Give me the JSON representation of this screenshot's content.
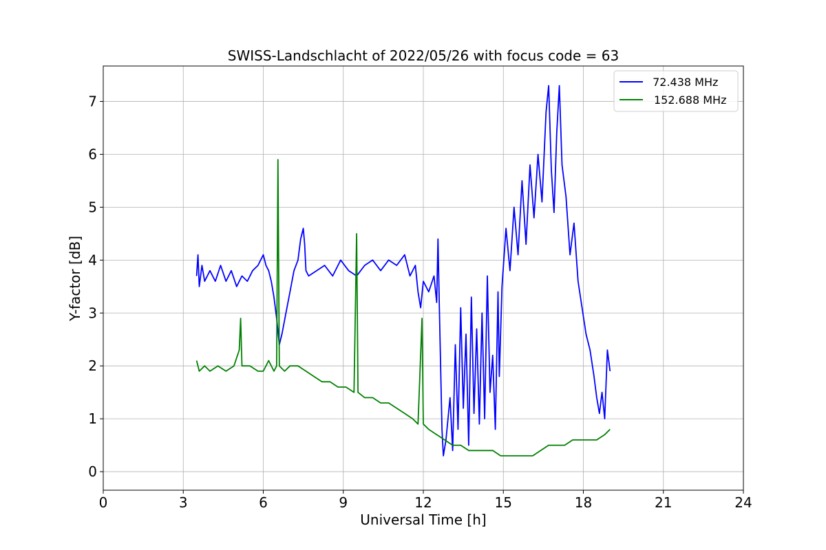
{
  "chart_data": {
    "type": "line",
    "title": "SWISS-Landschlacht of 2022/05/26 with focus code = 63",
    "xlabel": "Universal Time [h]",
    "ylabel": "Y-factor [dB]",
    "xlim": [
      0,
      24
    ],
    "ylim": [
      -0.35,
      7.67
    ],
    "xticks": [
      0,
      3,
      6,
      9,
      12,
      15,
      18,
      21,
      24
    ],
    "yticks": [
      0,
      1,
      2,
      3,
      4,
      5,
      6,
      7
    ],
    "grid": true,
    "legend_position": "top-right",
    "series": [
      {
        "name": " 72.438 MHz",
        "color": "#0000ff",
        "points": [
          [
            3.5,
            3.7
          ],
          [
            3.55,
            4.1
          ],
          [
            3.6,
            3.5
          ],
          [
            3.7,
            3.9
          ],
          [
            3.8,
            3.6
          ],
          [
            4.0,
            3.8
          ],
          [
            4.2,
            3.6
          ],
          [
            4.4,
            3.9
          ],
          [
            4.6,
            3.6
          ],
          [
            4.8,
            3.8
          ],
          [
            5.0,
            3.5
          ],
          [
            5.2,
            3.7
          ],
          [
            5.4,
            3.6
          ],
          [
            5.6,
            3.8
          ],
          [
            5.8,
            3.9
          ],
          [
            6.0,
            4.1
          ],
          [
            6.1,
            3.9
          ],
          [
            6.2,
            3.8
          ],
          [
            6.3,
            3.6
          ],
          [
            6.4,
            3.3
          ],
          [
            6.5,
            2.9
          ],
          [
            6.6,
            2.4
          ],
          [
            6.7,
            2.6
          ],
          [
            6.85,
            3.0
          ],
          [
            7.0,
            3.4
          ],
          [
            7.15,
            3.8
          ],
          [
            7.3,
            4.0
          ],
          [
            7.4,
            4.4
          ],
          [
            7.5,
            4.6
          ],
          [
            7.55,
            4.3
          ],
          [
            7.6,
            3.8
          ],
          [
            7.7,
            3.7
          ],
          [
            8.0,
            3.8
          ],
          [
            8.3,
            3.9
          ],
          [
            8.6,
            3.7
          ],
          [
            8.9,
            4.0
          ],
          [
            9.2,
            3.8
          ],
          [
            9.5,
            3.7
          ],
          [
            9.8,
            3.9
          ],
          [
            10.1,
            4.0
          ],
          [
            10.4,
            3.8
          ],
          [
            10.7,
            4.0
          ],
          [
            11.0,
            3.9
          ],
          [
            11.3,
            4.1
          ],
          [
            11.5,
            3.7
          ],
          [
            11.7,
            3.9
          ],
          [
            11.8,
            3.4
          ],
          [
            11.9,
            3.1
          ],
          [
            12.0,
            3.6
          ],
          [
            12.2,
            3.4
          ],
          [
            12.4,
            3.7
          ],
          [
            12.5,
            3.2
          ],
          [
            12.55,
            4.4
          ],
          [
            12.6,
            3.1
          ],
          [
            12.7,
            0.8
          ],
          [
            12.75,
            0.3
          ],
          [
            12.85,
            0.6
          ],
          [
            13.0,
            1.4
          ],
          [
            13.1,
            0.4
          ],
          [
            13.2,
            2.4
          ],
          [
            13.3,
            0.8
          ],
          [
            13.4,
            3.1
          ],
          [
            13.5,
            1.2
          ],
          [
            13.6,
            2.6
          ],
          [
            13.7,
            0.5
          ],
          [
            13.8,
            3.3
          ],
          [
            13.9,
            1.1
          ],
          [
            14.0,
            2.7
          ],
          [
            14.1,
            0.9
          ],
          [
            14.2,
            3.0
          ],
          [
            14.3,
            1.0
          ],
          [
            14.4,
            3.7
          ],
          [
            14.5,
            1.5
          ],
          [
            14.6,
            2.2
          ],
          [
            14.7,
            0.8
          ],
          [
            14.8,
            3.4
          ],
          [
            14.85,
            1.8
          ],
          [
            14.95,
            3.5
          ],
          [
            15.1,
            4.6
          ],
          [
            15.25,
            3.8
          ],
          [
            15.4,
            5.0
          ],
          [
            15.55,
            4.1
          ],
          [
            15.7,
            5.5
          ],
          [
            15.85,
            4.3
          ],
          [
            16.0,
            5.8
          ],
          [
            16.15,
            4.8
          ],
          [
            16.3,
            6.0
          ],
          [
            16.45,
            5.1
          ],
          [
            16.6,
            6.8
          ],
          [
            16.7,
            7.3
          ],
          [
            16.8,
            5.7
          ],
          [
            16.9,
            4.9
          ],
          [
            17.0,
            6.4
          ],
          [
            17.1,
            7.3
          ],
          [
            17.2,
            5.8
          ],
          [
            17.35,
            5.2
          ],
          [
            17.5,
            4.1
          ],
          [
            17.65,
            4.7
          ],
          [
            17.8,
            3.6
          ],
          [
            17.95,
            3.1
          ],
          [
            18.1,
            2.6
          ],
          [
            18.25,
            2.3
          ],
          [
            18.4,
            1.8
          ],
          [
            18.5,
            1.4
          ],
          [
            18.6,
            1.1
          ],
          [
            18.7,
            1.5
          ],
          [
            18.8,
            1.0
          ],
          [
            18.9,
            2.3
          ],
          [
            19.0,
            1.9
          ]
        ]
      },
      {
        "name": "152.688 MHz",
        "color": "#008000",
        "points": [
          [
            3.5,
            2.1
          ],
          [
            3.6,
            1.9
          ],
          [
            3.8,
            2.0
          ],
          [
            4.0,
            1.9
          ],
          [
            4.3,
            2.0
          ],
          [
            4.6,
            1.9
          ],
          [
            4.9,
            2.0
          ],
          [
            5.1,
            2.3
          ],
          [
            5.15,
            2.9
          ],
          [
            5.2,
            2.0
          ],
          [
            5.5,
            2.0
          ],
          [
            5.8,
            1.9
          ],
          [
            6.0,
            1.9
          ],
          [
            6.2,
            2.1
          ],
          [
            6.4,
            1.9
          ],
          [
            6.5,
            2.0
          ],
          [
            6.55,
            5.9
          ],
          [
            6.6,
            2.0
          ],
          [
            6.8,
            1.9
          ],
          [
            7.0,
            2.0
          ],
          [
            7.3,
            2.0
          ],
          [
            7.6,
            1.9
          ],
          [
            7.9,
            1.8
          ],
          [
            8.2,
            1.7
          ],
          [
            8.5,
            1.7
          ],
          [
            8.8,
            1.6
          ],
          [
            9.1,
            1.6
          ],
          [
            9.4,
            1.5
          ],
          [
            9.5,
            4.5
          ],
          [
            9.55,
            1.5
          ],
          [
            9.8,
            1.4
          ],
          [
            10.1,
            1.4
          ],
          [
            10.4,
            1.3
          ],
          [
            10.7,
            1.3
          ],
          [
            11.0,
            1.2
          ],
          [
            11.3,
            1.1
          ],
          [
            11.6,
            1.0
          ],
          [
            11.8,
            0.9
          ],
          [
            11.95,
            2.9
          ],
          [
            12.0,
            0.9
          ],
          [
            12.2,
            0.8
          ],
          [
            12.5,
            0.7
          ],
          [
            12.8,
            0.6
          ],
          [
            13.1,
            0.5
          ],
          [
            13.4,
            0.5
          ],
          [
            13.7,
            0.4
          ],
          [
            14.0,
            0.4
          ],
          [
            14.3,
            0.4
          ],
          [
            14.6,
            0.4
          ],
          [
            14.9,
            0.3
          ],
          [
            15.2,
            0.3
          ],
          [
            15.5,
            0.3
          ],
          [
            15.8,
            0.3
          ],
          [
            16.1,
            0.3
          ],
          [
            16.4,
            0.4
          ],
          [
            16.7,
            0.5
          ],
          [
            17.0,
            0.5
          ],
          [
            17.3,
            0.5
          ],
          [
            17.6,
            0.6
          ],
          [
            17.9,
            0.6
          ],
          [
            18.2,
            0.6
          ],
          [
            18.5,
            0.6
          ],
          [
            18.8,
            0.7
          ],
          [
            19.0,
            0.8
          ]
        ]
      }
    ]
  }
}
